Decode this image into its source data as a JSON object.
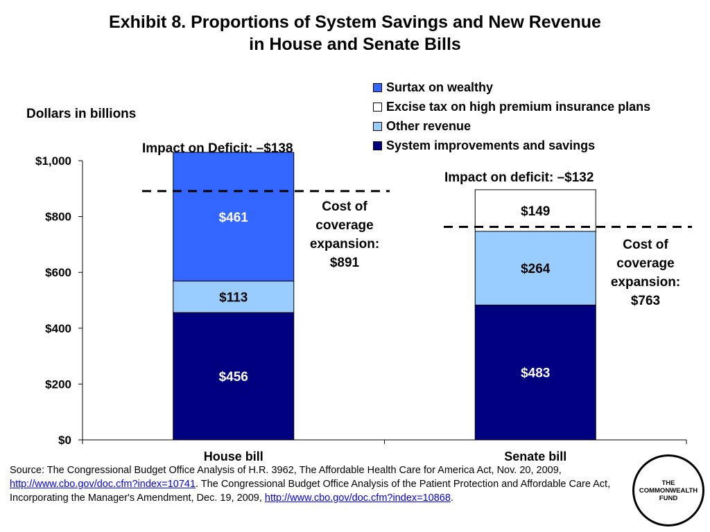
{
  "title": {
    "line1": "Exhibit 8. Proportions of System Savings and New Revenue",
    "line2": "in House and Senate Bills"
  },
  "chart_data": {
    "type": "bar",
    "stacked": true,
    "ylabel": "Dollars in billions",
    "ylim": [
      0,
      1000
    ],
    "yticks": [
      0,
      200,
      400,
      600,
      800,
      1000
    ],
    "ytick_labels": [
      "$0",
      "$200",
      "$400",
      "$600",
      "$800",
      "$1,000"
    ],
    "categories": [
      "House bill",
      "Senate bill"
    ],
    "series": [
      {
        "name": "System improvements and savings",
        "color": "#000080",
        "label_color": "#ffffff",
        "values": [
          456,
          483
        ],
        "labels": [
          "$456",
          "$483"
        ]
      },
      {
        "name": "Other revenue",
        "color": "#99ccff",
        "label_color": "#000000",
        "values": [
          113,
          264
        ],
        "labels": [
          "$113",
          "$264"
        ]
      },
      {
        "name": "Excise tax on high premium insurance plans",
        "color": "#ffffff",
        "label_color": "#000000",
        "values": [
          0,
          149
        ],
        "labels": [
          "",
          "$149"
        ]
      },
      {
        "name": "Surtax on wealthy",
        "color": "#3366ff",
        "label_color": "#ffffff",
        "values": [
          461,
          0
        ],
        "labels": [
          "$461",
          ""
        ]
      }
    ],
    "legend_order": [
      "Surtax on wealthy",
      "Excise tax on high premium insurance plans",
      "Other revenue",
      "System improvements and savings"
    ],
    "legend_position": "top-right",
    "reference_lines": [
      {
        "category": "House bill",
        "value": 891
      },
      {
        "category": "Senate bill",
        "value": 763
      }
    ],
    "annotations": {
      "house_deficit": "Impact on Deficit: –$138",
      "senate_deficit": "Impact on deficit: –$132",
      "house_cost": [
        "Cost of",
        "coverage",
        "expansion:",
        "$891"
      ],
      "senate_cost": [
        "Cost of",
        "coverage",
        "expansion:",
        "$763"
      ]
    }
  },
  "source": {
    "text1": "Source: The Congressional Budget Office Analysis of H.R. 3962, The Affordable Health Care for America Act, Nov. 20, 2009, ",
    "link1": "http://www.cbo.gov/doc.cfm?index=10741",
    "text2": ". The Congressional Budget Office Analysis of the Patient Protection and Affordable Care Act, Incorporating the Manager's Amendment, Dec. 19, 2009, ",
    "link2": "http://www.cbo.gov/doc.cfm?index=10868",
    "text3": "."
  },
  "logo": {
    "line1": "THE",
    "line2": "COMMONWEALTH",
    "line3": "FUND"
  }
}
